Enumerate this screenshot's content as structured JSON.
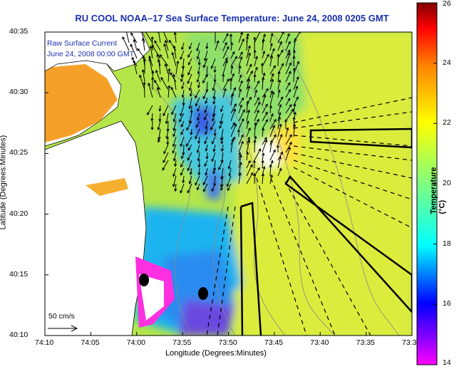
{
  "title": "RU COOL  NOAA–17  Sea Surface Temperature:  June 24, 2008 0205 GMT",
  "annotation": {
    "line1": "Raw Surface Current",
    "line2": "June 24, 2008 00:00 GMT"
  },
  "scale_label": "50 cm/s",
  "x_axis": {
    "label": "Longitude (Degrees:Minutes)",
    "ticks": [
      "74:10",
      "74:05",
      "74:00",
      "73:55",
      "73:50",
      "73:45",
      "73:40",
      "73:35",
      "73:3"
    ]
  },
  "y_axis": {
    "label": "Latitude (Degrees:Minutes)",
    "ticks": [
      "40:35",
      "40:30",
      "40:25",
      "40:20",
      "40:15",
      "40:10"
    ]
  },
  "colorbar": {
    "label": "Temperature (°C)",
    "ticks": [
      "26",
      "24",
      "22",
      "20",
      "18",
      "16",
      "14"
    ],
    "range": [
      14,
      26
    ],
    "colors": [
      "#ff00ff",
      "#0000ff",
      "#00ffff",
      "#ffff00",
      "#ff8000",
      "#ff0000",
      "#800000"
    ]
  }
}
